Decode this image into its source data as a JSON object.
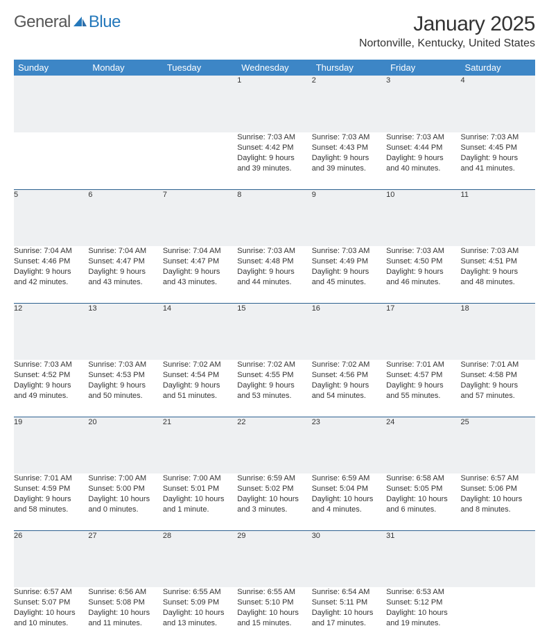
{
  "logo": {
    "text1": "General",
    "text2": "Blue"
  },
  "title": {
    "month": "January 2025",
    "location": "Nortonville, Kentucky, United States"
  },
  "colors": {
    "header_bg": "#3d86c6",
    "header_text": "#ffffff",
    "daynum_bg": "#eef0f2",
    "row_border": "#2b5f8f",
    "body_text": "#333333",
    "logo_gray": "#565656",
    "logo_blue": "#2478bb"
  },
  "dayHeaders": [
    "Sunday",
    "Monday",
    "Tuesday",
    "Wednesday",
    "Thursday",
    "Friday",
    "Saturday"
  ],
  "weeks": [
    [
      {
        "num": "",
        "detail": []
      },
      {
        "num": "",
        "detail": []
      },
      {
        "num": "",
        "detail": []
      },
      {
        "num": "1",
        "detail": [
          "Sunrise: 7:03 AM",
          "Sunset: 4:42 PM",
          "Daylight: 9 hours",
          "and 39 minutes."
        ]
      },
      {
        "num": "2",
        "detail": [
          "Sunrise: 7:03 AM",
          "Sunset: 4:43 PM",
          "Daylight: 9 hours",
          "and 39 minutes."
        ]
      },
      {
        "num": "3",
        "detail": [
          "Sunrise: 7:03 AM",
          "Sunset: 4:44 PM",
          "Daylight: 9 hours",
          "and 40 minutes."
        ]
      },
      {
        "num": "4",
        "detail": [
          "Sunrise: 7:03 AM",
          "Sunset: 4:45 PM",
          "Daylight: 9 hours",
          "and 41 minutes."
        ]
      }
    ],
    [
      {
        "num": "5",
        "detail": [
          "Sunrise: 7:04 AM",
          "Sunset: 4:46 PM",
          "Daylight: 9 hours",
          "and 42 minutes."
        ]
      },
      {
        "num": "6",
        "detail": [
          "Sunrise: 7:04 AM",
          "Sunset: 4:47 PM",
          "Daylight: 9 hours",
          "and 43 minutes."
        ]
      },
      {
        "num": "7",
        "detail": [
          "Sunrise: 7:04 AM",
          "Sunset: 4:47 PM",
          "Daylight: 9 hours",
          "and 43 minutes."
        ]
      },
      {
        "num": "8",
        "detail": [
          "Sunrise: 7:03 AM",
          "Sunset: 4:48 PM",
          "Daylight: 9 hours",
          "and 44 minutes."
        ]
      },
      {
        "num": "9",
        "detail": [
          "Sunrise: 7:03 AM",
          "Sunset: 4:49 PM",
          "Daylight: 9 hours",
          "and 45 minutes."
        ]
      },
      {
        "num": "10",
        "detail": [
          "Sunrise: 7:03 AM",
          "Sunset: 4:50 PM",
          "Daylight: 9 hours",
          "and 46 minutes."
        ]
      },
      {
        "num": "11",
        "detail": [
          "Sunrise: 7:03 AM",
          "Sunset: 4:51 PM",
          "Daylight: 9 hours",
          "and 48 minutes."
        ]
      }
    ],
    [
      {
        "num": "12",
        "detail": [
          "Sunrise: 7:03 AM",
          "Sunset: 4:52 PM",
          "Daylight: 9 hours",
          "and 49 minutes."
        ]
      },
      {
        "num": "13",
        "detail": [
          "Sunrise: 7:03 AM",
          "Sunset: 4:53 PM",
          "Daylight: 9 hours",
          "and 50 minutes."
        ]
      },
      {
        "num": "14",
        "detail": [
          "Sunrise: 7:02 AM",
          "Sunset: 4:54 PM",
          "Daylight: 9 hours",
          "and 51 minutes."
        ]
      },
      {
        "num": "15",
        "detail": [
          "Sunrise: 7:02 AM",
          "Sunset: 4:55 PM",
          "Daylight: 9 hours",
          "and 53 minutes."
        ]
      },
      {
        "num": "16",
        "detail": [
          "Sunrise: 7:02 AM",
          "Sunset: 4:56 PM",
          "Daylight: 9 hours",
          "and 54 minutes."
        ]
      },
      {
        "num": "17",
        "detail": [
          "Sunrise: 7:01 AM",
          "Sunset: 4:57 PM",
          "Daylight: 9 hours",
          "and 55 minutes."
        ]
      },
      {
        "num": "18",
        "detail": [
          "Sunrise: 7:01 AM",
          "Sunset: 4:58 PM",
          "Daylight: 9 hours",
          "and 57 minutes."
        ]
      }
    ],
    [
      {
        "num": "19",
        "detail": [
          "Sunrise: 7:01 AM",
          "Sunset: 4:59 PM",
          "Daylight: 9 hours",
          "and 58 minutes."
        ]
      },
      {
        "num": "20",
        "detail": [
          "Sunrise: 7:00 AM",
          "Sunset: 5:00 PM",
          "Daylight: 10 hours",
          "and 0 minutes."
        ]
      },
      {
        "num": "21",
        "detail": [
          "Sunrise: 7:00 AM",
          "Sunset: 5:01 PM",
          "Daylight: 10 hours",
          "and 1 minute."
        ]
      },
      {
        "num": "22",
        "detail": [
          "Sunrise: 6:59 AM",
          "Sunset: 5:02 PM",
          "Daylight: 10 hours",
          "and 3 minutes."
        ]
      },
      {
        "num": "23",
        "detail": [
          "Sunrise: 6:59 AM",
          "Sunset: 5:04 PM",
          "Daylight: 10 hours",
          "and 4 minutes."
        ]
      },
      {
        "num": "24",
        "detail": [
          "Sunrise: 6:58 AM",
          "Sunset: 5:05 PM",
          "Daylight: 10 hours",
          "and 6 minutes."
        ]
      },
      {
        "num": "25",
        "detail": [
          "Sunrise: 6:57 AM",
          "Sunset: 5:06 PM",
          "Daylight: 10 hours",
          "and 8 minutes."
        ]
      }
    ],
    [
      {
        "num": "26",
        "detail": [
          "Sunrise: 6:57 AM",
          "Sunset: 5:07 PM",
          "Daylight: 10 hours",
          "and 10 minutes."
        ]
      },
      {
        "num": "27",
        "detail": [
          "Sunrise: 6:56 AM",
          "Sunset: 5:08 PM",
          "Daylight: 10 hours",
          "and 11 minutes."
        ]
      },
      {
        "num": "28",
        "detail": [
          "Sunrise: 6:55 AM",
          "Sunset: 5:09 PM",
          "Daylight: 10 hours",
          "and 13 minutes."
        ]
      },
      {
        "num": "29",
        "detail": [
          "Sunrise: 6:55 AM",
          "Sunset: 5:10 PM",
          "Daylight: 10 hours",
          "and 15 minutes."
        ]
      },
      {
        "num": "30",
        "detail": [
          "Sunrise: 6:54 AM",
          "Sunset: 5:11 PM",
          "Daylight: 10 hours",
          "and 17 minutes."
        ]
      },
      {
        "num": "31",
        "detail": [
          "Sunrise: 6:53 AM",
          "Sunset: 5:12 PM",
          "Daylight: 10 hours",
          "and 19 minutes."
        ]
      },
      {
        "num": "",
        "detail": []
      }
    ]
  ]
}
